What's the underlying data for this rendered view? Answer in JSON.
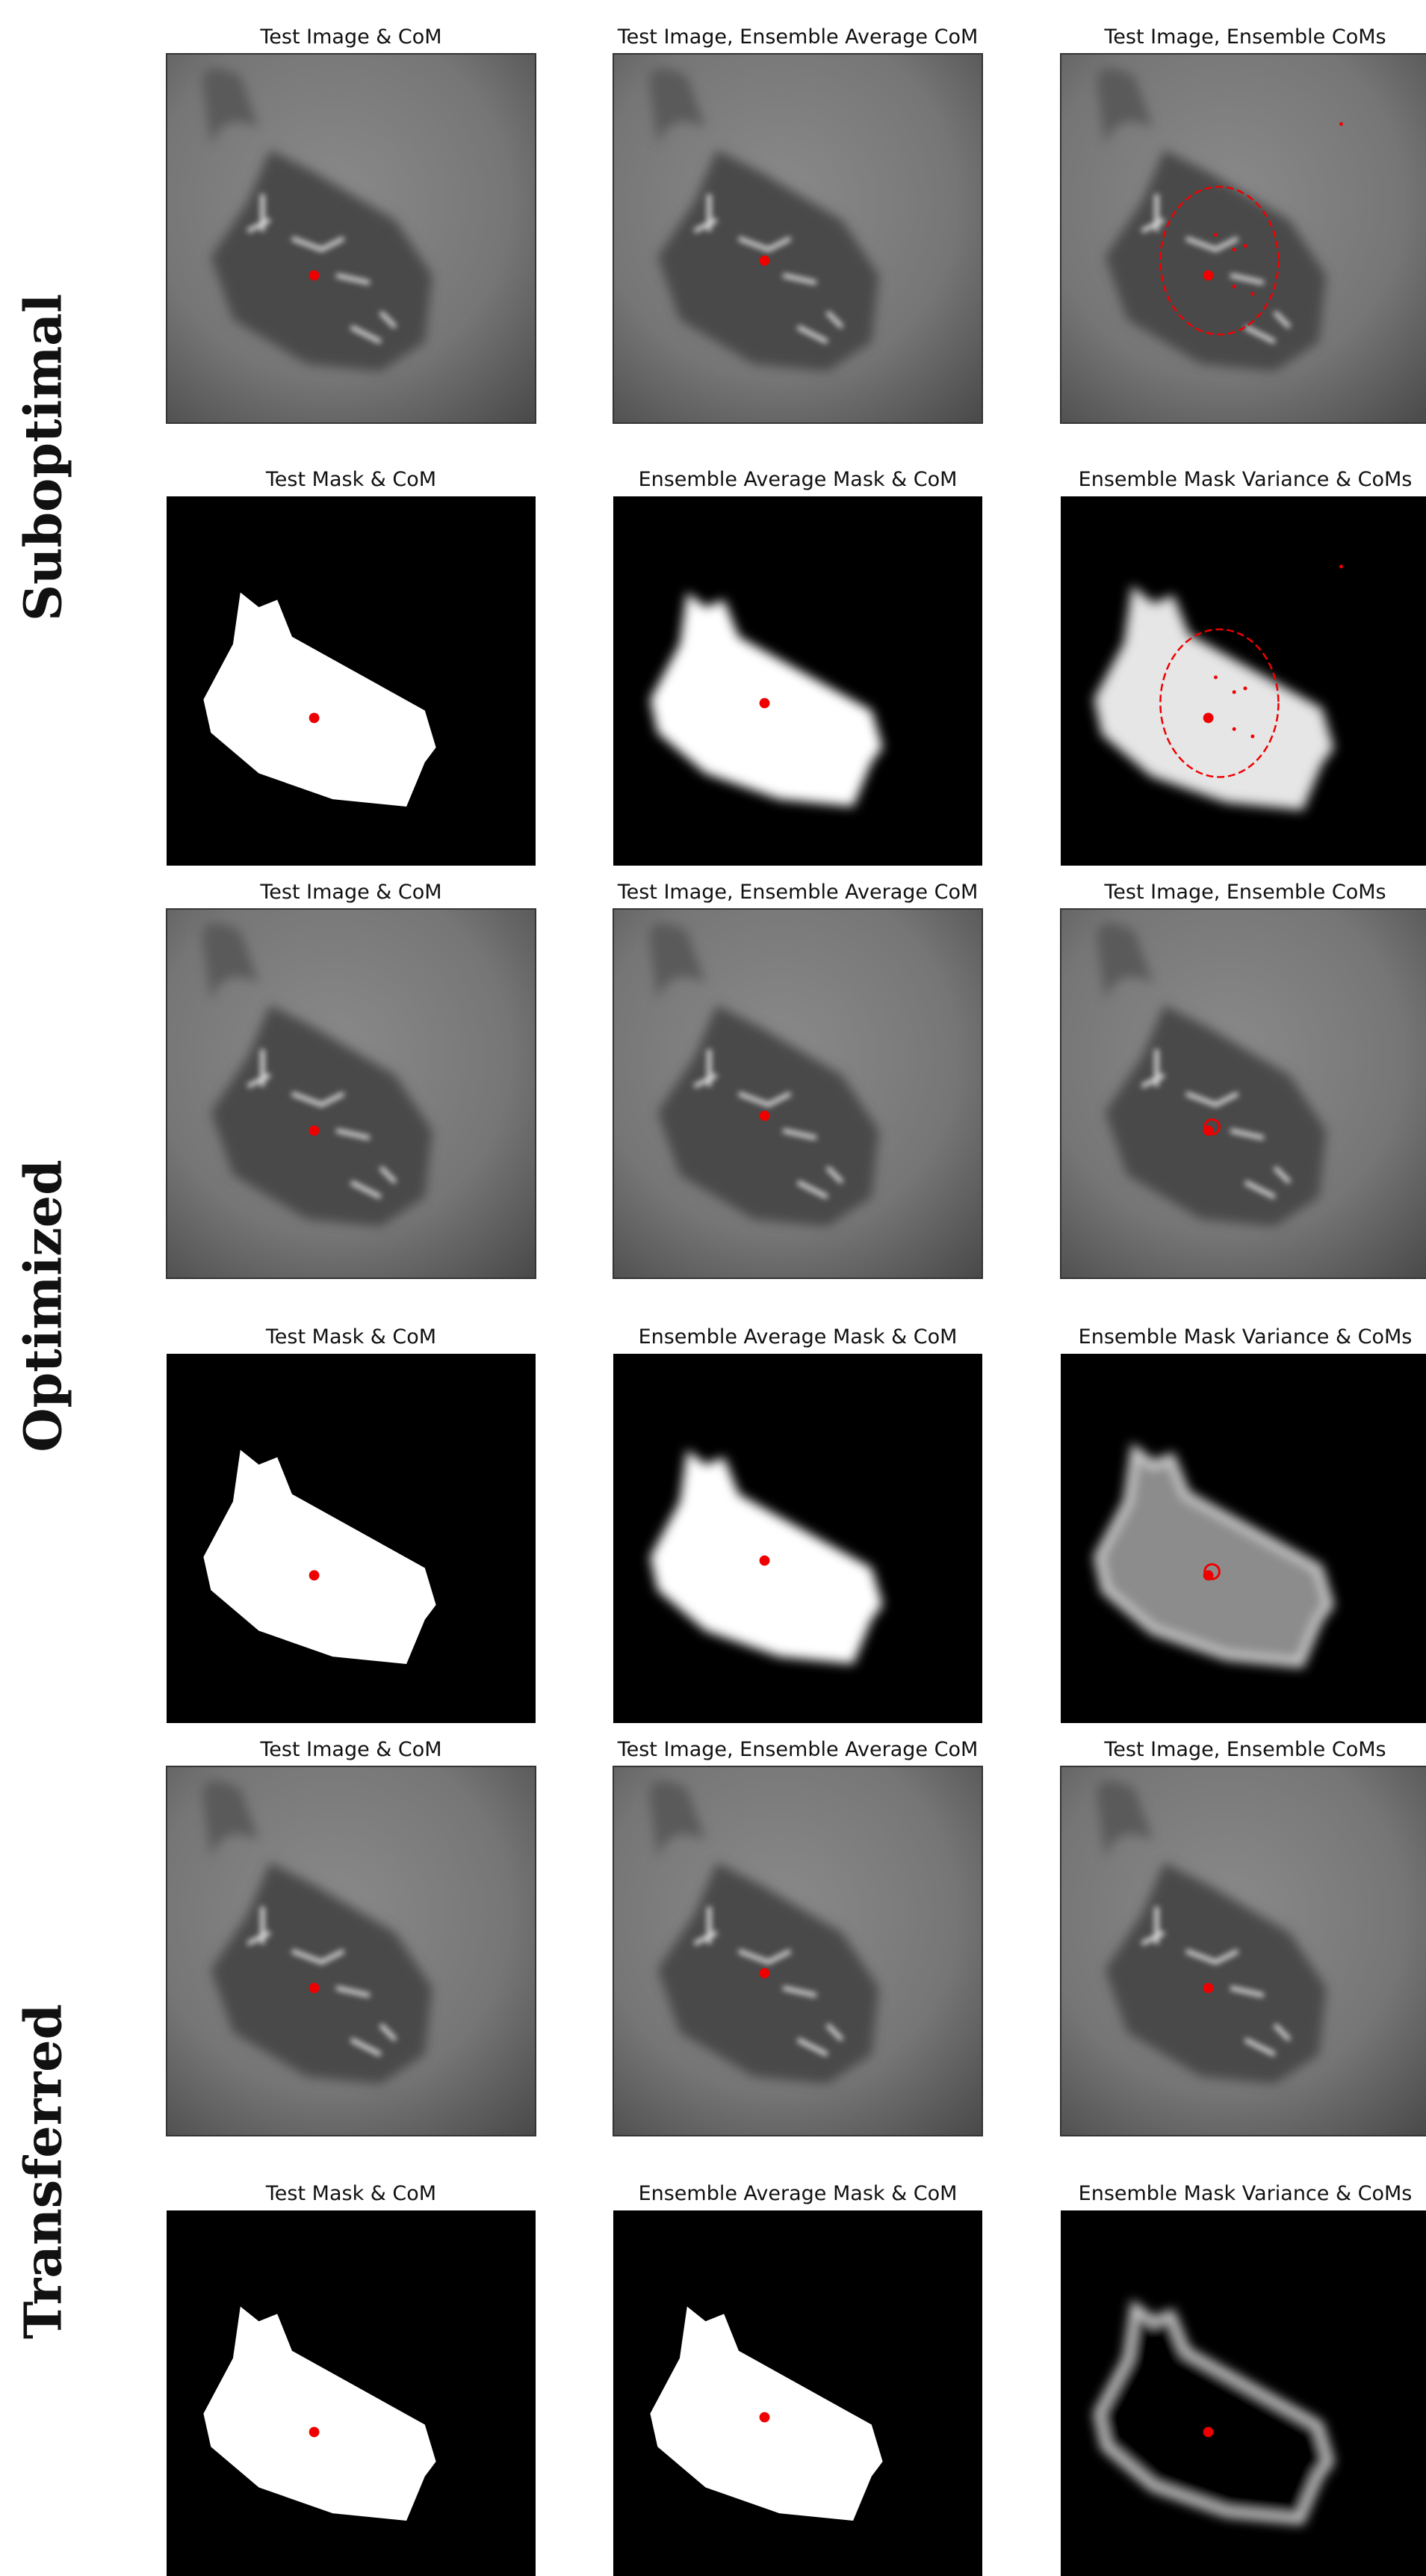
{
  "groups": [
    {
      "label": "Suboptimal",
      "panels": [
        "Test Image & CoM",
        "Test Image, Ensemble Average CoM",
        "Test Image, Ensemble CoMs",
        "Test Mask & CoM",
        "Ensemble Average Mask & CoM",
        "Ensemble Mask Variance & CoMs"
      ]
    },
    {
      "label": "Optimized",
      "panels": [
        "Test Image & CoM",
        "Test Image, Ensemble Average CoM",
        "Test Image, Ensemble CoMs",
        "Test Mask & CoM",
        "Ensemble Average Mask & CoM",
        "Ensemble Mask Variance & CoMs"
      ]
    },
    {
      "label": "Transferred",
      "panels": [
        "Test Image & CoM",
        "Test Image, Ensemble Average CoM",
        "Test Image, Ensemble CoMs",
        "Test Mask & CoM",
        "Ensemble Average Mask & CoM",
        "Ensemble Mask Variance & CoMs"
      ]
    }
  ]
}
